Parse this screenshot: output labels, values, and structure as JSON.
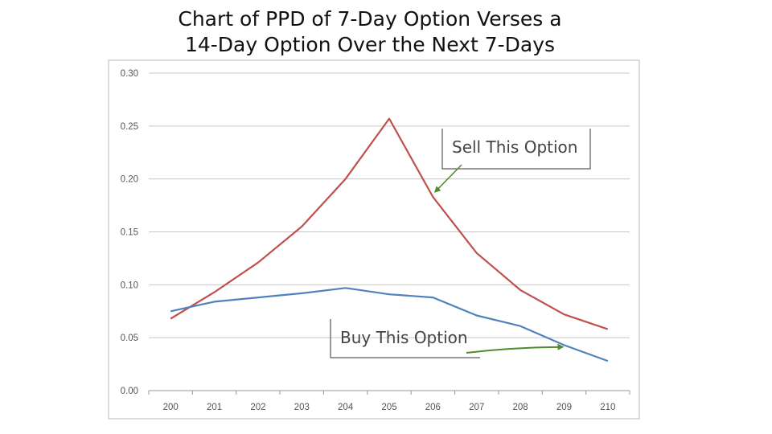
{
  "slide": {
    "title_line1": "Chart of PPD of 7-Day Option Verses a",
    "title_line2": "14-Day Option Over the Next 7-Days"
  },
  "chart_data": {
    "type": "line",
    "title": "Chart of PPD of 7-Day Option Verses a 14-Day Option Over the Next 7-Days",
    "xlabel": "",
    "ylabel": "",
    "x": [
      200,
      201,
      202,
      203,
      204,
      205,
      206,
      207,
      208,
      209,
      210
    ],
    "ylim": [
      0,
      0.3
    ],
    "yticks": [
      "0.00",
      "0.05",
      "0.10",
      "0.15",
      "0.20",
      "0.25",
      "0.30"
    ],
    "grid": "horizontal",
    "legend": "none",
    "series": [
      {
        "color": "#c0504d",
        "values": [
          0.068,
          0.093,
          0.121,
          0.155,
          0.2,
          0.257,
          0.183,
          0.13,
          0.095,
          0.072,
          0.058
        ]
      },
      {
        "color": "#4f81bd",
        "values": [
          0.075,
          0.084,
          0.088,
          0.092,
          0.097,
          0.091,
          0.088,
          0.071,
          0.061,
          0.043,
          0.028
        ]
      }
    ],
    "annotations": [
      {
        "text": "Sell This Option",
        "points_to_series": 0,
        "x": 206,
        "y": 0.185
      },
      {
        "text": "Buy This Option",
        "points_to_series": 1,
        "x": 209,
        "y": 0.042
      }
    ],
    "annotation_arrow_color": "#4f8a2f"
  }
}
